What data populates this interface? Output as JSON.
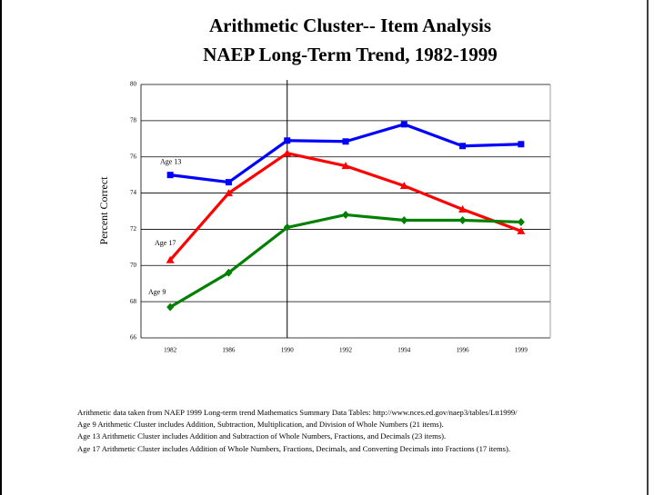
{
  "chart_data": {
    "type": "line",
    "title": [
      "Arithmetic Cluster-- Item Analysis",
      "NAEP Long-Term Trend, 1982-1999"
    ],
    "y_label": "Percent Correct",
    "categories": [
      "1982",
      "1986",
      "1990",
      "1992",
      "1994",
      "1996",
      "1999"
    ],
    "series": [
      {
        "name": "Age 13",
        "color": "#0000ff",
        "marker": "square",
        "values": [
          75.0,
          74.6,
          76.9,
          76.85,
          77.8,
          76.6,
          76.7
        ]
      },
      {
        "name": "Age 17",
        "color": "#ff0000",
        "marker": "triangle",
        "values": [
          70.3,
          74.0,
          76.2,
          75.5,
          74.4,
          73.1,
          71.9
        ]
      },
      {
        "name": "Age 9",
        "color": "#008000",
        "marker": "diamond",
        "values": [
          67.7,
          69.6,
          72.1,
          72.8,
          72.5,
          72.5,
          72.4
        ]
      }
    ],
    "ylim": [
      66,
      80
    ],
    "yticks": [
      66,
      68,
      70,
      72,
      74,
      76,
      78,
      80
    ],
    "grid": true,
    "notes": [
      "Arithmetic data taken from NAEP 1999 Long-term trend Mathematics Summary Data Tables: http://www.nces.ed.gov/naep3/tables/Ltt1999/",
      "Age 9 Arithmetic Cluster includes Addition, Subtraction, Multiplication, and Division of Whole Numbers (21 items).",
      "Age 13 Arithmetic Cluster includes Addition and Subtraction of Whole Numbers, Fractions, and Decimals (23 items).",
      "Age 17 Arithmetic Cluster includes Addition of Whole Numbers, Fractions, Decimals, and Converting Decimals into Fractions (17 items)."
    ]
  }
}
